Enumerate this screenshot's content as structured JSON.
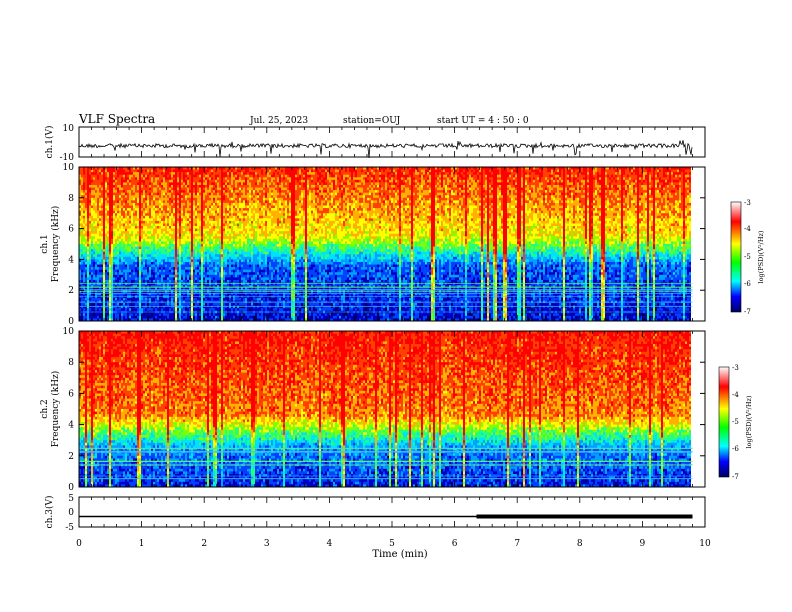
{
  "header": {
    "title": "VLF Spectra",
    "date": "Jul. 25, 2023",
    "station": "station=OUJ",
    "start": "start UT =  4 : 50 : 0"
  },
  "chart_data": [
    {
      "type": "line",
      "ylabel": "ch.1(V)",
      "ylim": [
        -10,
        10
      ],
      "yticks": [
        "10",
        "-10"
      ],
      "xlim": [
        0,
        10
      ],
      "description_baseline": -2.5
    },
    {
      "type": "heatmap",
      "ylabel": "ch.1",
      "ylabel2": "Frequency (kHz)",
      "ylim": [
        0,
        10
      ],
      "yticks": [
        "0",
        "2",
        "4",
        "6",
        "8",
        "10"
      ],
      "xlim": [
        0,
        10
      ],
      "colorbar": {
        "label": "log(PSD)(V²/Hz)",
        "range": [
          -7,
          -3
        ],
        "ticks": [
          "-3",
          "-4",
          "-5",
          "-6",
          "-7"
        ]
      }
    },
    {
      "type": "heatmap",
      "ylabel": "ch.2",
      "ylabel2": "Frequency (kHz)",
      "ylim": [
        0,
        10
      ],
      "yticks": [
        "0",
        "2",
        "4",
        "6",
        "8",
        "10"
      ],
      "xlim": [
        0,
        10
      ],
      "colorbar": {
        "label": "log(PSD)(V²/Hz)",
        "range": [
          -7,
          -3
        ],
        "ticks": [
          "-3",
          "-4",
          "-5",
          "-6",
          "-7"
        ]
      }
    },
    {
      "type": "line",
      "ylabel": "ch.3(V)",
      "ylim": [
        -5,
        5
      ],
      "yticks": [
        "5",
        "0",
        "-5"
      ],
      "xlim": [
        0,
        10
      ],
      "xlabel": "Time (min)",
      "xticks": [
        "0",
        "1",
        "2",
        "3",
        "4",
        "5",
        "6",
        "7",
        "8",
        "9",
        "10"
      ],
      "level": -1.5,
      "thick_from": 6.35,
      "data_end": 9.8
    }
  ],
  "colors": {
    "low": "#000080",
    "mid": "#00c8ff",
    "green": "#40e040",
    "yellow": "#ffff00",
    "high": "#ff2000"
  }
}
